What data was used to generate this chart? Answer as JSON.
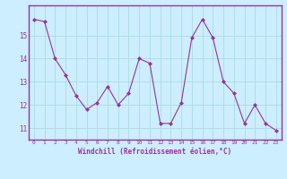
{
  "x": [
    0,
    1,
    2,
    3,
    4,
    5,
    6,
    7,
    8,
    9,
    10,
    11,
    12,
    13,
    14,
    15,
    16,
    17,
    18,
    19,
    20,
    21,
    22,
    23
  ],
  "y": [
    15.7,
    15.6,
    14.0,
    13.3,
    12.4,
    11.8,
    12.1,
    12.8,
    12.0,
    12.5,
    14.0,
    13.8,
    11.2,
    11.2,
    12.1,
    14.9,
    15.7,
    14.9,
    13.0,
    12.5,
    11.2,
    12.0,
    11.2,
    10.9
  ],
  "line_color": "#993399",
  "marker": "D",
  "marker_size": 2.0,
  "bg_color": "#cceeff",
  "plot_bg_color": "#cceeff",
  "grid_color": "#aadddd",
  "xlabel": "Windchill (Refroidissement éolien,°C)",
  "xlabel_color": "#993399",
  "tick_color": "#993399",
  "border_color": "#993399",
  "ylim": [
    10.5,
    16.3
  ],
  "xlim": [
    -0.5,
    23.5
  ],
  "xticks": [
    0,
    1,
    2,
    3,
    4,
    5,
    6,
    7,
    8,
    9,
    10,
    11,
    12,
    13,
    14,
    15,
    16,
    17,
    18,
    19,
    20,
    21,
    22,
    23
  ],
  "yticks": [
    11,
    12,
    13,
    14,
    15
  ],
  "figsize": [
    3.2,
    2.0
  ],
  "dpi": 100
}
